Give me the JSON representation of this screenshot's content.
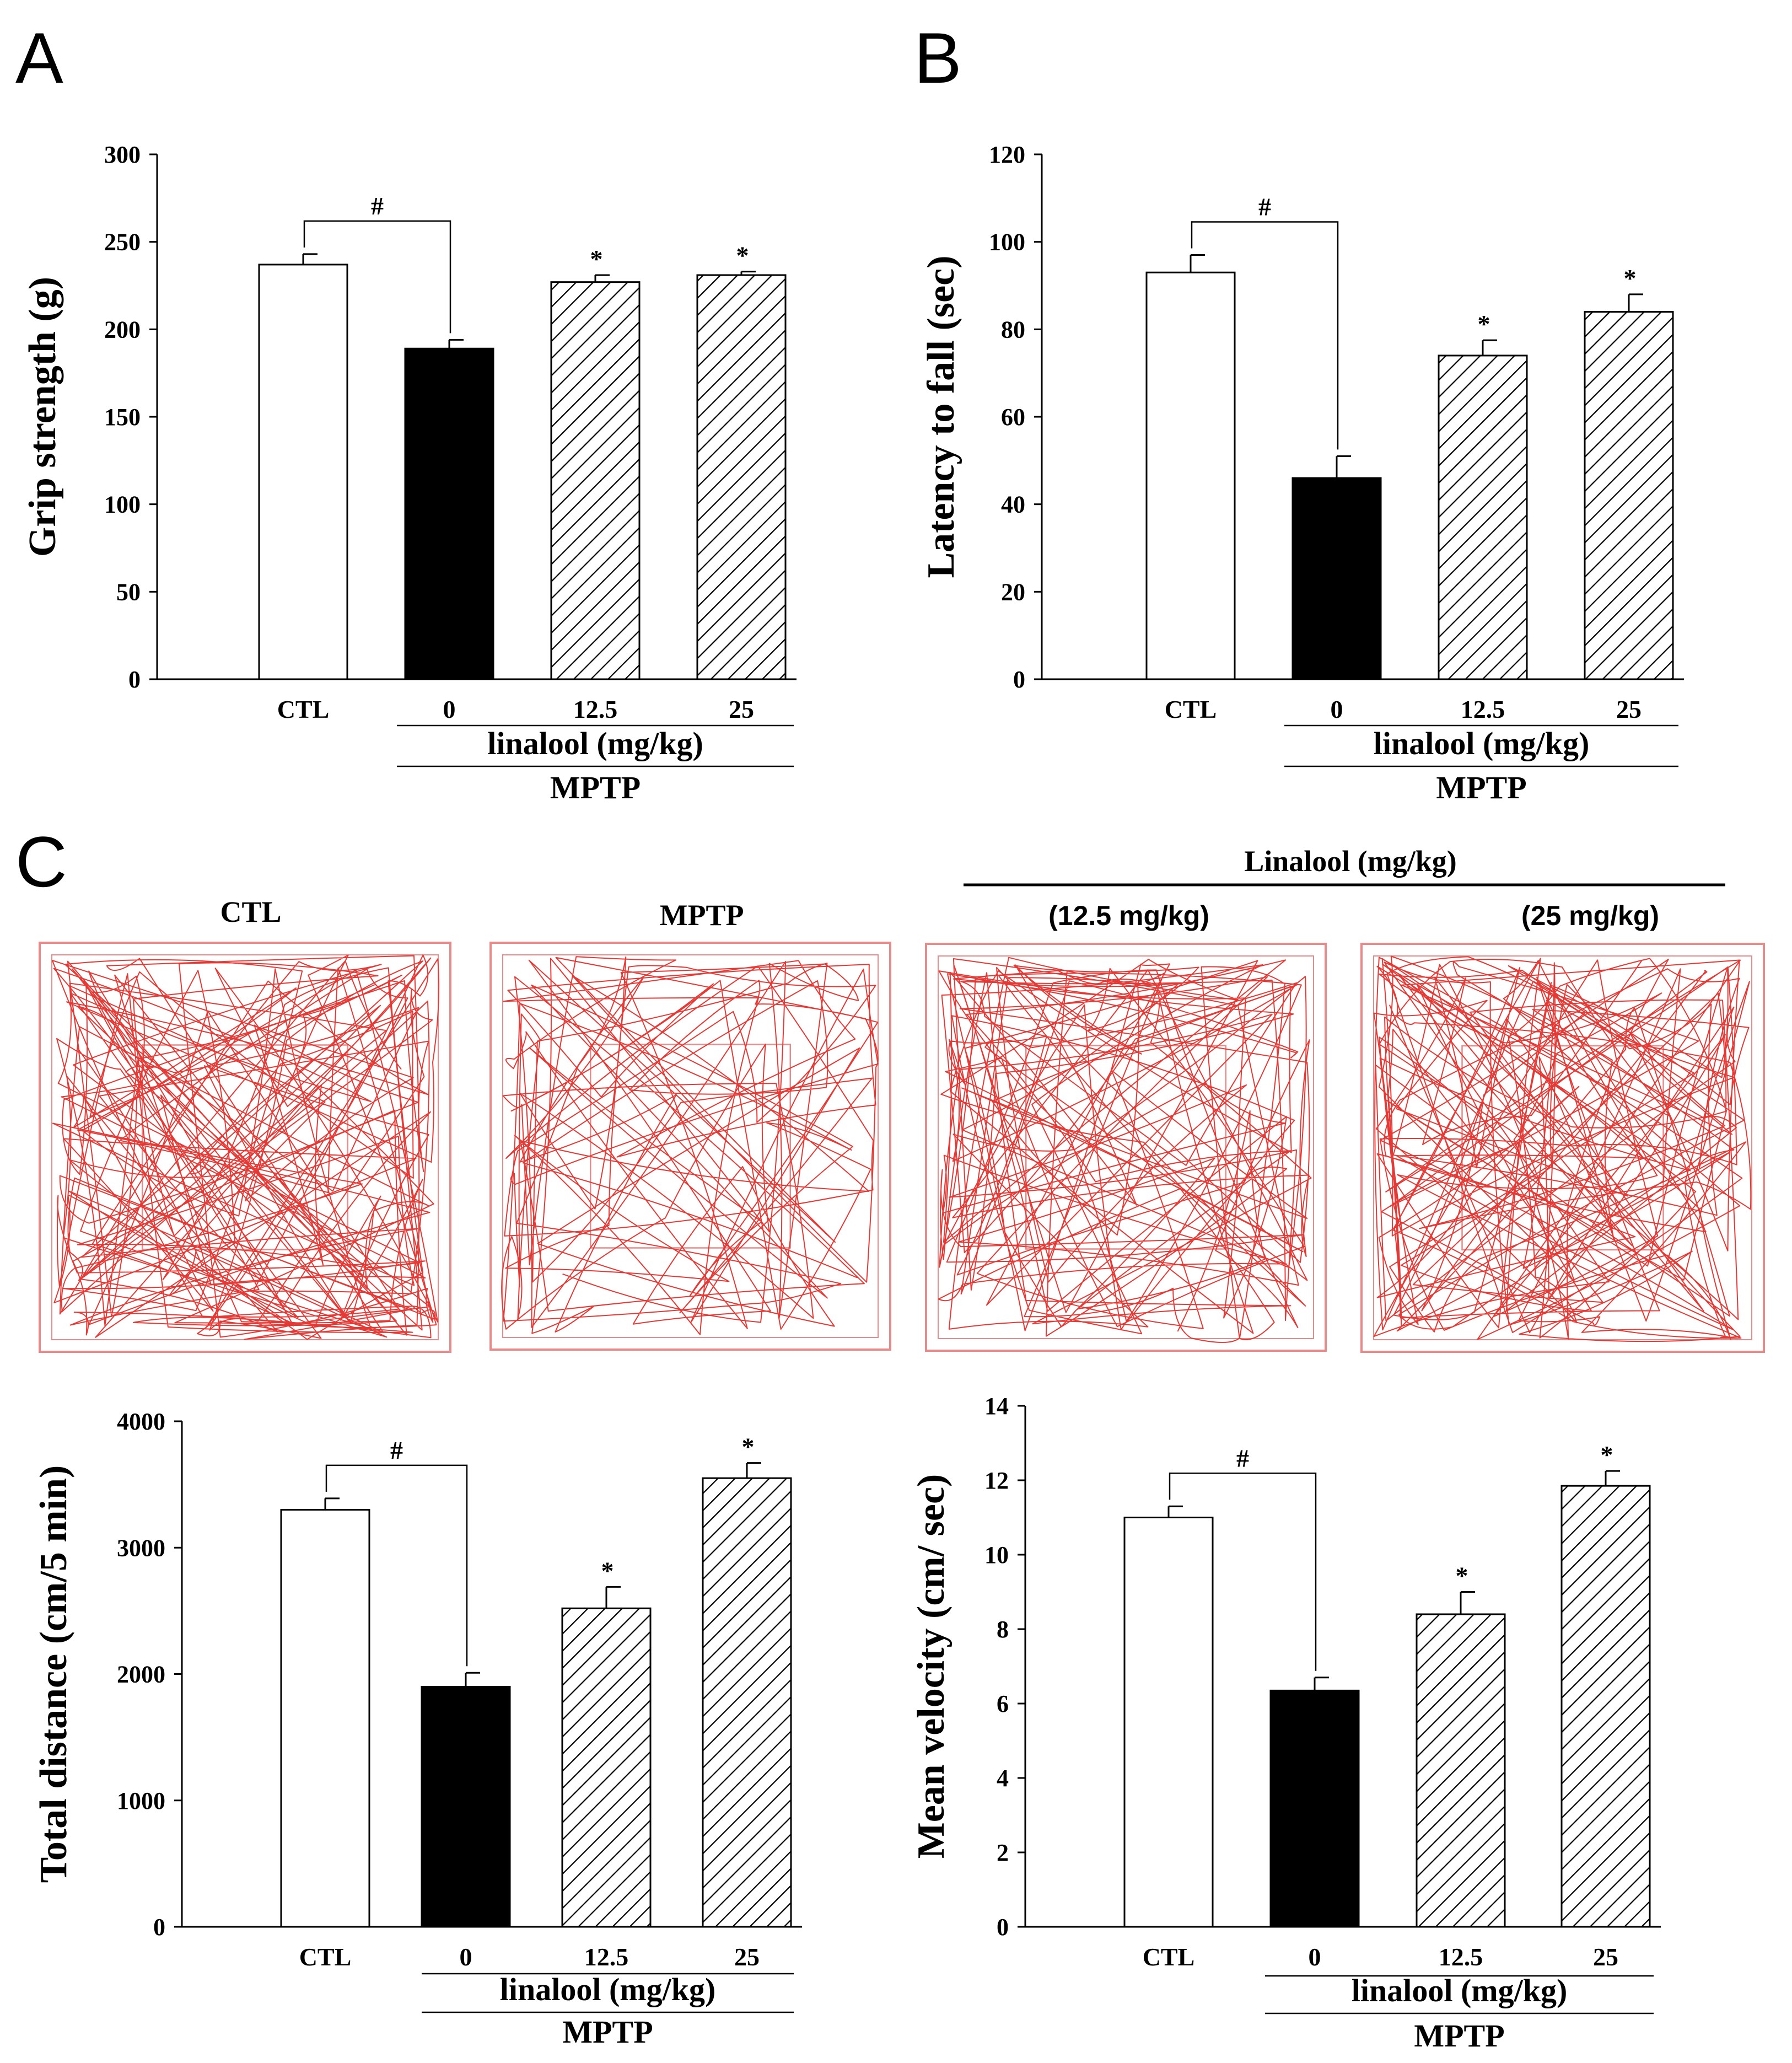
{
  "panels": {
    "A": "A",
    "B": "B",
    "C": "C"
  },
  "open_field": {
    "arena_labels": [
      "CTL",
      "MPTP",
      "(12.5 mg/kg)",
      "(25 mg/kg)"
    ],
    "treatment_header": "Linalool (mg/kg)"
  },
  "colors": {
    "track": "#e53935",
    "arena_border": "#e88a8a",
    "ctl_fill": "#ffffff",
    "mptp_fill": "#000000",
    "hatch": "#000000"
  },
  "chart_data": [
    {
      "id": "A",
      "type": "bar",
      "ylabel": "Grip strength (g)",
      "ylim": [
        0,
        300
      ],
      "yticks": [
        0,
        50,
        100,
        150,
        200,
        250,
        300
      ],
      "categories": [
        "CTL",
        "0",
        "12.5",
        "25"
      ],
      "values": [
        237,
        189,
        227,
        231
      ],
      "errors": [
        6,
        5,
        4,
        2
      ],
      "bar_styles": [
        "open",
        "solid",
        "hatched",
        "hatched"
      ],
      "significance": [
        {
          "type": "bracket",
          "from": "CTL",
          "to": "0",
          "label": "#"
        },
        {
          "type": "star",
          "category": "12.5",
          "label": "*"
        },
        {
          "type": "star",
          "category": "25",
          "label": "*"
        }
      ],
      "group_label": "linalool (mg/kg)",
      "outer_label": "MPTP"
    },
    {
      "id": "B",
      "type": "bar",
      "ylabel": "Latency to fall (sec)",
      "ylim": [
        0,
        120
      ],
      "yticks": [
        0,
        20,
        40,
        60,
        80,
        100,
        120
      ],
      "categories": [
        "CTL",
        "0",
        "12.5",
        "25"
      ],
      "values": [
        93,
        46,
        74,
        84
      ],
      "errors": [
        4,
        5,
        3.5,
        4
      ],
      "bar_styles": [
        "open",
        "solid",
        "hatched",
        "hatched"
      ],
      "significance": [
        {
          "type": "bracket",
          "from": "CTL",
          "to": "0",
          "label": "#"
        },
        {
          "type": "star",
          "category": "12.5",
          "label": "*"
        },
        {
          "type": "star",
          "category": "25",
          "label": "*"
        }
      ],
      "group_label": "linalool (mg/kg)",
      "outer_label": "MPTP"
    },
    {
      "id": "C-distance",
      "type": "bar",
      "ylabel": "Total distance (cm/5 min)",
      "ylim": [
        0,
        4000
      ],
      "yticks": [
        0,
        1000,
        2000,
        3000,
        4000
      ],
      "categories": [
        "CTL",
        "0",
        "12.5",
        "25"
      ],
      "values": [
        3300,
        1900,
        2520,
        3550
      ],
      "errors": [
        90,
        110,
        170,
        120
      ],
      "bar_styles": [
        "open",
        "solid",
        "hatched",
        "hatched"
      ],
      "significance": [
        {
          "type": "bracket",
          "from": "CTL",
          "to": "0",
          "label": "#"
        },
        {
          "type": "star",
          "category": "12.5",
          "label": "*"
        },
        {
          "type": "star",
          "category": "25",
          "label": "*"
        }
      ],
      "group_label": "linalool (mg/kg)",
      "outer_label": "MPTP"
    },
    {
      "id": "C-velocity",
      "type": "bar",
      "ylabel": "Mean velocity (cm/ sec)",
      "ylim": [
        0,
        14
      ],
      "yticks": [
        0,
        2,
        4,
        6,
        8,
        10,
        12,
        14
      ],
      "categories": [
        "CTL",
        "0",
        "12.5",
        "25"
      ],
      "values": [
        11,
        6.35,
        8.4,
        11.85
      ],
      "errors": [
        0.3,
        0.35,
        0.6,
        0.4
      ],
      "bar_styles": [
        "open",
        "solid",
        "hatched",
        "hatched"
      ],
      "significance": [
        {
          "type": "bracket",
          "from": "CTL",
          "to": "0",
          "label": "#"
        },
        {
          "type": "star",
          "category": "12.5",
          "label": "*"
        },
        {
          "type": "star",
          "category": "25",
          "label": "*"
        }
      ],
      "group_label": "linalool (mg/kg)",
      "outer_label": "MPTP"
    }
  ]
}
